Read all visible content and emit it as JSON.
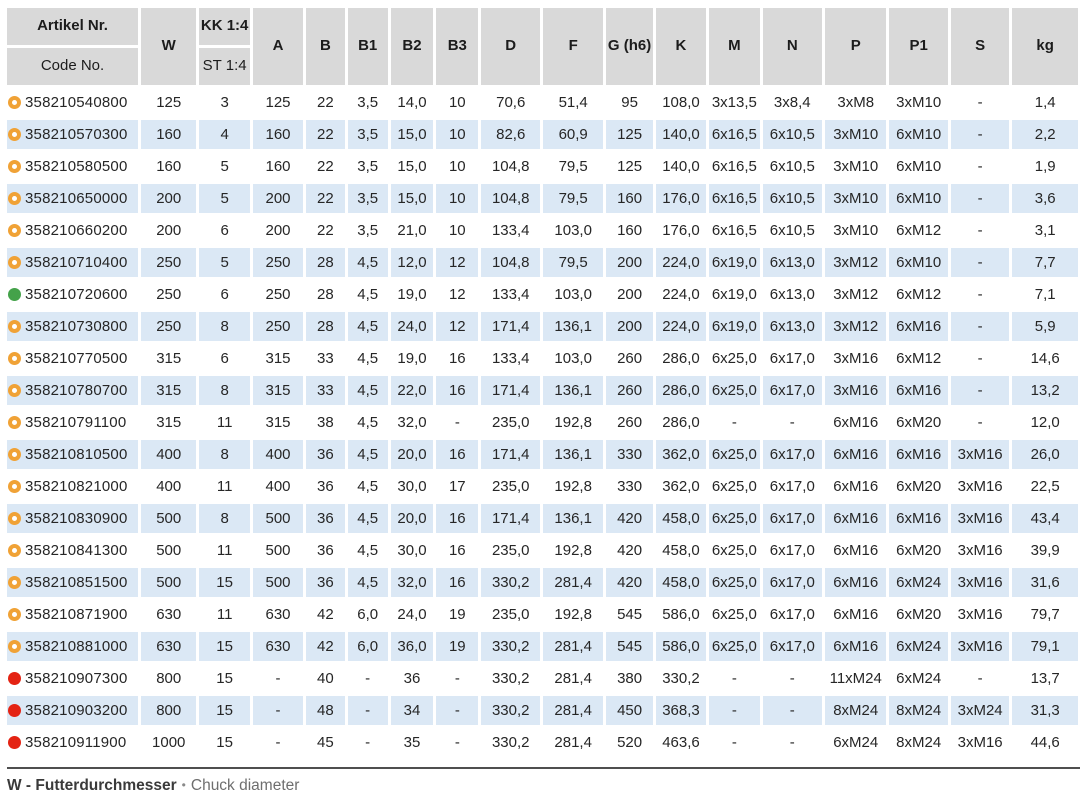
{
  "table": {
    "header": {
      "artikel_top": "Artikel Nr.",
      "artikel_bottom": "Code No.",
      "w": "W",
      "kk_top": "KK 1:4",
      "kk_bottom": "ST 1:4",
      "cols": [
        "A",
        "B",
        "B1",
        "B2",
        "B3",
        "D",
        "F",
        "G (h6)",
        "K",
        "M",
        "N",
        "P",
        "P1",
        "S",
        "kg"
      ]
    },
    "rows": [
      {
        "icon": "orange-ring",
        "artikel": "358210540800",
        "values": [
          "125",
          "3",
          "125",
          "22",
          "3,5",
          "14,0",
          "10",
          "70,6",
          "51,4",
          "95",
          "108,0",
          "3x13,5",
          "3x8,4",
          "3xM8",
          "3xM10",
          "-",
          "1,4"
        ]
      },
      {
        "icon": "orange-ring",
        "artikel": "358210570300",
        "values": [
          "160",
          "4",
          "160",
          "22",
          "3,5",
          "15,0",
          "10",
          "82,6",
          "60,9",
          "125",
          "140,0",
          "6x16,5",
          "6x10,5",
          "3xM10",
          "6xM10",
          "-",
          "2,2"
        ]
      },
      {
        "icon": "orange-ring",
        "artikel": "358210580500",
        "values": [
          "160",
          "5",
          "160",
          "22",
          "3,5",
          "15,0",
          "10",
          "104,8",
          "79,5",
          "125",
          "140,0",
          "6x16,5",
          "6x10,5",
          "3xM10",
          "6xM10",
          "-",
          "1,9"
        ]
      },
      {
        "icon": "orange-ring",
        "artikel": "358210650000",
        "values": [
          "200",
          "5",
          "200",
          "22",
          "3,5",
          "15,0",
          "10",
          "104,8",
          "79,5",
          "160",
          "176,0",
          "6x16,5",
          "6x10,5",
          "3xM10",
          "6xM10",
          "-",
          "3,6"
        ]
      },
      {
        "icon": "orange-ring",
        "artikel": "358210660200",
        "values": [
          "200",
          "6",
          "200",
          "22",
          "3,5",
          "21,0",
          "10",
          "133,4",
          "103,0",
          "160",
          "176,0",
          "6x16,5",
          "6x10,5",
          "3xM10",
          "6xM12",
          "-",
          "3,1"
        ]
      },
      {
        "icon": "orange-ring",
        "artikel": "358210710400",
        "values": [
          "250",
          "5",
          "250",
          "28",
          "4,5",
          "12,0",
          "12",
          "104,8",
          "79,5",
          "200",
          "224,0",
          "6x19,0",
          "6x13,0",
          "3xM12",
          "6xM10",
          "-",
          "7,7"
        ]
      },
      {
        "icon": "green-dot",
        "artikel": "358210720600",
        "values": [
          "250",
          "6",
          "250",
          "28",
          "4,5",
          "19,0",
          "12",
          "133,4",
          "103,0",
          "200",
          "224,0",
          "6x19,0",
          "6x13,0",
          "3xM12",
          "6xM12",
          "-",
          "7,1"
        ]
      },
      {
        "icon": "orange-ring",
        "artikel": "358210730800",
        "values": [
          "250",
          "8",
          "250",
          "28",
          "4,5",
          "24,0",
          "12",
          "171,4",
          "136,1",
          "200",
          "224,0",
          "6x19,0",
          "6x13,0",
          "3xM12",
          "6xM16",
          "-",
          "5,9"
        ]
      },
      {
        "icon": "orange-ring",
        "artikel": "358210770500",
        "values": [
          "315",
          "6",
          "315",
          "33",
          "4,5",
          "19,0",
          "16",
          "133,4",
          "103,0",
          "260",
          "286,0",
          "6x25,0",
          "6x17,0",
          "3xM16",
          "6xM12",
          "-",
          "14,6"
        ]
      },
      {
        "icon": "orange-ring",
        "artikel": "358210780700",
        "values": [
          "315",
          "8",
          "315",
          "33",
          "4,5",
          "22,0",
          "16",
          "171,4",
          "136,1",
          "260",
          "286,0",
          "6x25,0",
          "6x17,0",
          "3xM16",
          "6xM16",
          "-",
          "13,2"
        ]
      },
      {
        "icon": "orange-ring",
        "artikel": "358210791100",
        "values": [
          "315",
          "11",
          "315",
          "38",
          "4,5",
          "32,0",
          "-",
          "235,0",
          "192,8",
          "260",
          "286,0",
          "-",
          "-",
          "6xM16",
          "6xM20",
          "-",
          "12,0"
        ]
      },
      {
        "icon": "orange-ring",
        "artikel": "358210810500",
        "values": [
          "400",
          "8",
          "400",
          "36",
          "4,5",
          "20,0",
          "16",
          "171,4",
          "136,1",
          "330",
          "362,0",
          "6x25,0",
          "6x17,0",
          "6xM16",
          "6xM16",
          "3xM16",
          "26,0"
        ]
      },
      {
        "icon": "orange-ring",
        "artikel": "358210821000",
        "values": [
          "400",
          "11",
          "400",
          "36",
          "4,5",
          "30,0",
          "17",
          "235,0",
          "192,8",
          "330",
          "362,0",
          "6x25,0",
          "6x17,0",
          "6xM16",
          "6xM20",
          "3xM16",
          "22,5"
        ]
      },
      {
        "icon": "orange-ring",
        "artikel": "358210830900",
        "values": [
          "500",
          "8",
          "500",
          "36",
          "4,5",
          "20,0",
          "16",
          "171,4",
          "136,1",
          "420",
          "458,0",
          "6x25,0",
          "6x17,0",
          "6xM16",
          "6xM16",
          "3xM16",
          "43,4"
        ]
      },
      {
        "icon": "orange-ring",
        "artikel": "358210841300",
        "values": [
          "500",
          "11",
          "500",
          "36",
          "4,5",
          "30,0",
          "16",
          "235,0",
          "192,8",
          "420",
          "458,0",
          "6x25,0",
          "6x17,0",
          "6xM16",
          "6xM20",
          "3xM16",
          "39,9"
        ]
      },
      {
        "icon": "orange-ring",
        "artikel": "358210851500",
        "values": [
          "500",
          "15",
          "500",
          "36",
          "4,5",
          "32,0",
          "16",
          "330,2",
          "281,4",
          "420",
          "458,0",
          "6x25,0",
          "6x17,0",
          "6xM16",
          "6xM24",
          "3xM16",
          "31,6"
        ]
      },
      {
        "icon": "orange-ring",
        "artikel": "358210871900",
        "values": [
          "630",
          "11",
          "630",
          "42",
          "6,0",
          "24,0",
          "19",
          "235,0",
          "192,8",
          "545",
          "586,0",
          "6x25,0",
          "6x17,0",
          "6xM16",
          "6xM20",
          "3xM16",
          "79,7"
        ]
      },
      {
        "icon": "orange-ring",
        "artikel": "358210881000",
        "values": [
          "630",
          "15",
          "630",
          "42",
          "6,0",
          "36,0",
          "19",
          "330,2",
          "281,4",
          "545",
          "586,0",
          "6x25,0",
          "6x17,0",
          "6xM16",
          "6xM24",
          "3xM16",
          "79,1"
        ]
      },
      {
        "icon": "red-dot",
        "artikel": "358210907300",
        "values": [
          "800",
          "15",
          "-",
          "40",
          "-",
          "36",
          "-",
          "330,2",
          "281,4",
          "380",
          "330,2",
          "-",
          "-",
          "11xM24",
          "6xM24",
          "-",
          "13,7"
        ]
      },
      {
        "icon": "red-dot",
        "artikel": "358210903200",
        "values": [
          "800",
          "15",
          "-",
          "48",
          "-",
          "34",
          "-",
          "330,2",
          "281,4",
          "450",
          "368,3",
          "-",
          "-",
          "8xM24",
          "8xM24",
          "3xM24",
          "31,3"
        ]
      },
      {
        "icon": "red-dot",
        "artikel": "358210911900",
        "values": [
          "1000",
          "15",
          "-",
          "45",
          "-",
          "35",
          "-",
          "330,2",
          "281,4",
          "520",
          "463,6",
          "-",
          "-",
          "6xM24",
          "8xM24",
          "3xM16",
          "44,6"
        ]
      }
    ]
  },
  "footer": {
    "term_bold": "W - Futterdurchmesser",
    "separator": "•",
    "definition": "Chuck diameter"
  },
  "status_colors": {
    "orange_ring": "#f0a236",
    "green_dot": "#44a24a",
    "red_dot": "#e42313"
  },
  "theme_colors": {
    "header_background": "#d9d9d9",
    "row_stripe_blue": "#dbe8f5",
    "text": "#262626"
  }
}
